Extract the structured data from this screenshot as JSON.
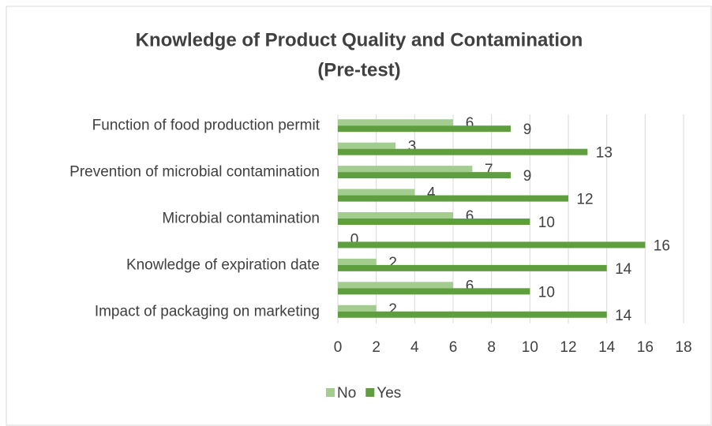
{
  "chart_data": {
    "type": "bar",
    "orientation": "horizontal",
    "title": [
      "Knowledge of Product Quality and Contamination",
      "(Pre-test)"
    ],
    "categories": [
      "Function of food production permit",
      null,
      "Prevention of microbial contamination",
      null,
      "Microbial contamination",
      null,
      "Knowledge of expiration date",
      null,
      "Impact of packaging on marketing"
    ],
    "series": [
      {
        "name": "No",
        "color": "#a3cc8f",
        "values": [
          6,
          3,
          7,
          4,
          6,
          0,
          2,
          6,
          2
        ]
      },
      {
        "name": "Yes",
        "color": "#5e9e3f",
        "values": [
          9,
          13,
          9,
          12,
          10,
          16,
          14,
          10,
          14
        ]
      }
    ],
    "xlim": [
      0,
      18
    ],
    "xticks": [
      0,
      2,
      4,
      6,
      8,
      10,
      12,
      14,
      16,
      18
    ],
    "grid": true,
    "legend": "bottom"
  }
}
